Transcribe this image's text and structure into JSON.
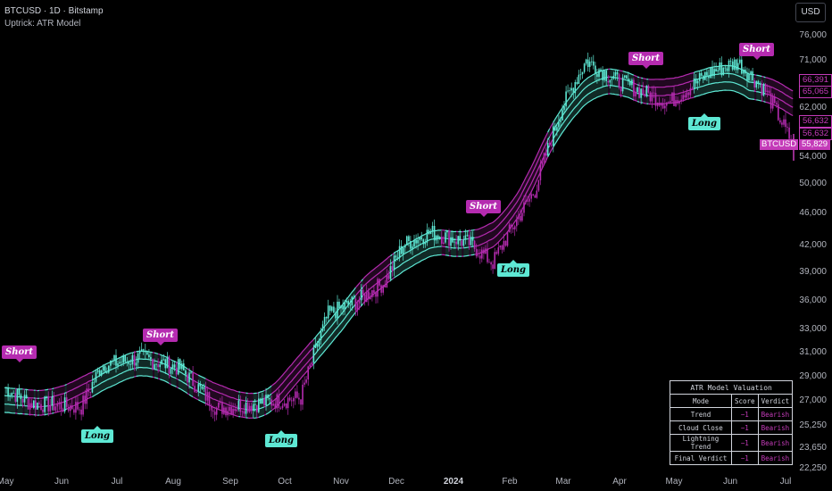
{
  "header": {
    "title": "BTCUSD · 1D · Bitstamp",
    "indicator": "Uptrick: ATR Model"
  },
  "currency_button": "USD",
  "y_axis_ticks": [
    "76,000",
    "71,000",
    "62,000",
    "54,000",
    "50,000",
    "46,000",
    "42,000",
    "39,000",
    "36,000",
    "33,000",
    "31,000",
    "29,000",
    "27,000",
    "25,250",
    "23,650",
    "22,250"
  ],
  "x_axis_ticks": [
    "May",
    "Jun",
    "Jul",
    "Aug",
    "Sep",
    "Oct",
    "Nov",
    "Dec",
    "2024",
    "Feb",
    "Mar",
    "Apr",
    "May",
    "Jun",
    "Jul"
  ],
  "price_labels": {
    "upper1": "66,391",
    "upper2": "65,065",
    "lower1": "56,632",
    "lower2": "56,632",
    "last": "55,829",
    "symbol": "BTCUSD"
  },
  "signals": [
    {
      "label": "Short",
      "type": "short"
    },
    {
      "label": "Long",
      "type": "long"
    },
    {
      "label": "Short",
      "type": "short"
    },
    {
      "label": "Long",
      "type": "long"
    },
    {
      "label": "Short",
      "type": "short"
    },
    {
      "label": "Long",
      "type": "long"
    },
    {
      "label": "Short",
      "type": "short"
    },
    {
      "label": "Long",
      "type": "long"
    },
    {
      "label": "Short",
      "type": "short"
    }
  ],
  "valuation_table": {
    "title": "ATR Model Valuation",
    "headers": [
      "Mode",
      "Score",
      "Verdict"
    ],
    "rows": [
      [
        "Trend",
        "−1",
        "Bearish"
      ],
      [
        "Cloud Close",
        "−1",
        "Bearish"
      ],
      [
        "Lightning Trend",
        "−1",
        "Bearish"
      ],
      [
        "Final Verdict",
        "−1",
        "Bearish"
      ]
    ]
  },
  "colors": {
    "bull": "#5ee8d4",
    "bear": "#b52bb0",
    "background": "#000000"
  },
  "chart_data": {
    "type": "line",
    "series": [
      {
        "values": [
          28000,
          26800,
          26500,
          29800,
          30500,
          29600,
          26400,
          27200,
          34500,
          35800,
          37800,
          42000,
          43500,
          42200,
          39900,
          49000,
          62000,
          70800,
          67000,
          62800,
          68500,
          70500,
          65000,
          57500,
          55829
        ]
      }
    ],
    "x": [
      "2023-05-01",
      "2023-05-15",
      "2023-06-12",
      "2023-06-23",
      "2023-07-15",
      "2023-08-05",
      "2023-08-25",
      "2023-10-10",
      "2023-10-25",
      "2023-11-10",
      "2023-11-25",
      "2023-12-05",
      "2023-12-20",
      "2024-01-10",
      "2024-01-23",
      "2024-02-15",
      "2024-03-01",
      "2024-03-14",
      "2024-03-30",
      "2024-04-28",
      "2024-05-21",
      "2024-06-05",
      "2024-06-20",
      "2024-07-02",
      "2024-07-05"
    ],
    "xlabel": "",
    "ylabel": "",
    "ylim": [
      22250,
      76000
    ],
    "y_scale": "log",
    "grid": false,
    "legend": "none"
  }
}
